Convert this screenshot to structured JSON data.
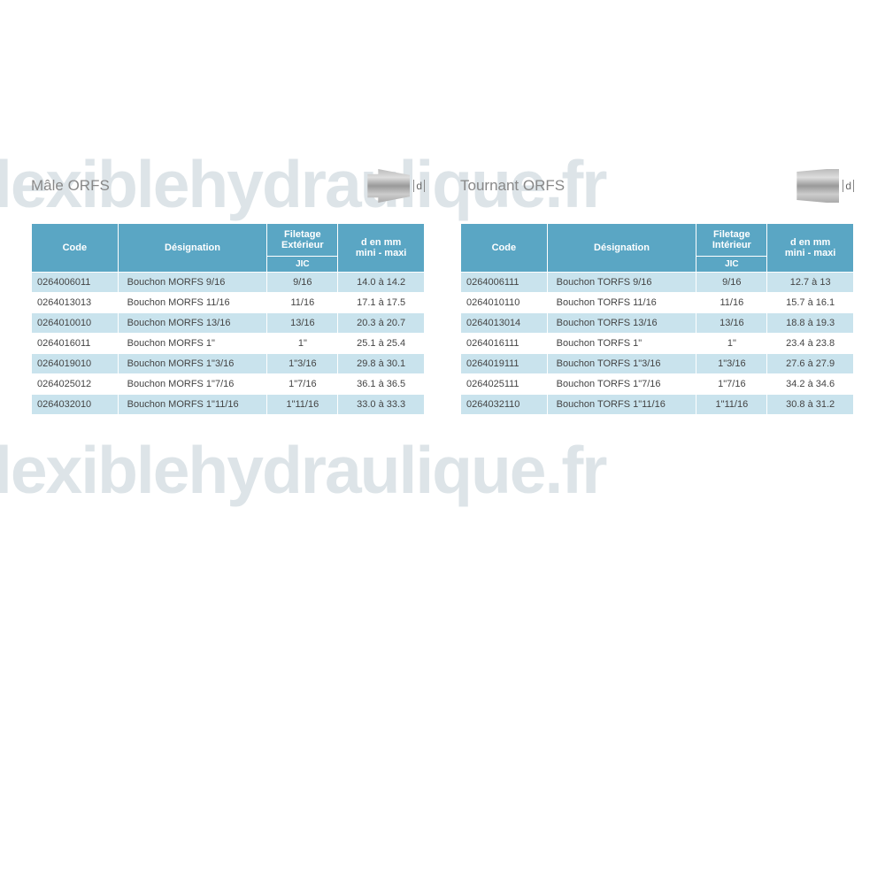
{
  "watermark": "flexiblehydraulique.fr",
  "colors": {
    "header_bg": "#5aa6c4",
    "header_text": "#ffffff",
    "row_odd_bg": "#c9e3ed",
    "row_even_bg": "#ffffff",
    "body_text": "#444444",
    "title_text": "#888888",
    "watermark_text": "rgba(180,195,205,0.45)"
  },
  "tables": [
    {
      "title": "Mâle ORFS",
      "diagram_type": "male",
      "dim_label": "d",
      "columns": {
        "code": "Code",
        "designation": "Désignation",
        "thread_top": "Filetage Extérieur",
        "thread_sub": "JIC",
        "dim": "d  en mm\nmini - maxi"
      },
      "col_widths_pct": [
        22,
        38,
        18,
        22
      ],
      "rows": [
        {
          "code": "0264006011",
          "desig": "Bouchon MORFS 9/16",
          "thread": "9/16",
          "dim": "14.0 à 14.2"
        },
        {
          "code": "0264013013",
          "desig": "Bouchon MORFS 11/16",
          "thread": "11/16",
          "dim": "17.1 à 17.5"
        },
        {
          "code": "0264010010",
          "desig": "Bouchon MORFS 13/16",
          "thread": "13/16",
          "dim": "20.3 à 20.7"
        },
        {
          "code": "0264016011",
          "desig": "Bouchon MORFS 1\"",
          "thread": "1\"",
          "dim": "25.1 à 25.4"
        },
        {
          "code": "0264019010",
          "desig": "Bouchon MORFS 1\"3/16",
          "thread": "1\"3/16",
          "dim": "29.8 à 30.1"
        },
        {
          "code": "0264025012",
          "desig": "Bouchon MORFS 1\"7/16",
          "thread": "1\"7/16",
          "dim": "36.1 à 36.5"
        },
        {
          "code": "0264032010",
          "desig": "Bouchon MORFS 1\"11/16",
          "thread": "1\"11/16",
          "dim": "33.0 à 33.3"
        }
      ]
    },
    {
      "title": "Tournant ORFS",
      "diagram_type": "female",
      "dim_label": "d",
      "columns": {
        "code": "Code",
        "designation": "Désignation",
        "thread_top": "Filetage Intérieur",
        "thread_sub": "JIC",
        "dim": "d  en mm\nmini - maxi"
      },
      "col_widths_pct": [
        22,
        38,
        18,
        22
      ],
      "rows": [
        {
          "code": "0264006111",
          "desig": "Bouchon TORFS 9/16",
          "thread": "9/16",
          "dim": "12.7 à 13"
        },
        {
          "code": "0264010110",
          "desig": "Bouchon TORFS 11/16",
          "thread": "11/16",
          "dim": "15.7 à 16.1"
        },
        {
          "code": "0264013014",
          "desig": "Bouchon TORFS 13/16",
          "thread": "13/16",
          "dim": "18.8 à 19.3"
        },
        {
          "code": "0264016111",
          "desig": "Bouchon TORFS 1\"",
          "thread": "1\"",
          "dim": "23.4 à 23.8"
        },
        {
          "code": "0264019111",
          "desig": "Bouchon TORFS 1\"3/16",
          "thread": "1\"3/16",
          "dim": "27.6 à 27.9"
        },
        {
          "code": "0264025111",
          "desig": "Bouchon TORFS 1\"7/16",
          "thread": "1\"7/16",
          "dim": "34.2 à 34.6"
        },
        {
          "code": "0264032110",
          "desig": "Bouchon TORFS 1\"11/16",
          "thread": "1\"11/16",
          "dim": "30.8 à 31.2"
        }
      ]
    }
  ]
}
